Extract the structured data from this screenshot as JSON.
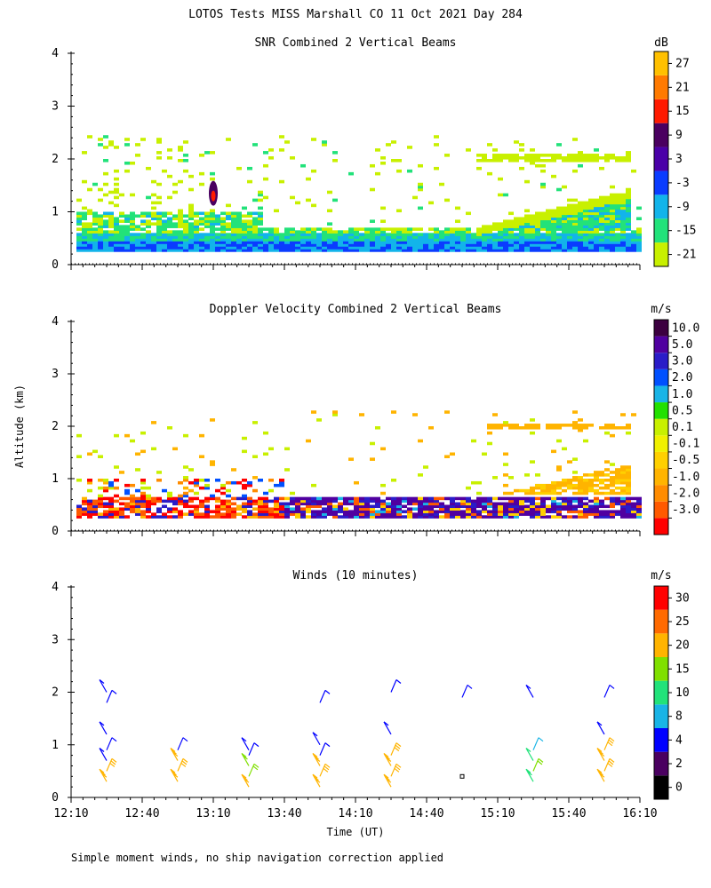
{
  "page": {
    "title": "LOTOS Tests MISS Marshall CO  11 Oct 2021 Day 284",
    "ylabel": "Altitude (km)",
    "xlabel": "Time (UT)",
    "footnote": "Simple moment winds, no ship navigation correction applied"
  },
  "colors": {
    "snr": [
      "#c8f000",
      "#22e27a",
      "#12b4ea",
      "#0a3cff",
      "#4a00a8",
      "#4a0060",
      "#ff1a00",
      "#ff7a00",
      "#ffc000"
    ],
    "velocity": [
      "#ff0000",
      "#ff5a00",
      "#ff8c00",
      "#ffb400",
      "#ffd000",
      "#f0f000",
      "#c8f000",
      "#22e000",
      "#19b4e6",
      "#0050ff",
      "#2a1cc8",
      "#5000a0",
      "#3c0040"
    ],
    "winds": [
      "#000000",
      "#4a0060",
      "#0000ff",
      "#19b4e6",
      "#22e27a",
      "#80e000",
      "#ffb400",
      "#ff6a00",
      "#ff0000"
    ]
  },
  "chart_data": [
    {
      "type": "heatmap",
      "title": "SNR Combined 2 Vertical Beams",
      "units": "dB",
      "xlabel": "",
      "ylabel": "Altitude (km)",
      "x_tick_labels": [
        "12:10",
        "12:40",
        "13:10",
        "13:40",
        "14:10",
        "14:40",
        "15:10",
        "15:40",
        "16:10"
      ],
      "xlim": [
        "12:10",
        "16:10"
      ],
      "ylim": [
        0,
        4
      ],
      "y_ticks": [
        0,
        1,
        2,
        3,
        4
      ],
      "colorbar_labels": [
        "-21",
        "-15",
        "-9",
        "-3",
        "3",
        "9",
        "15",
        "21",
        "27"
      ],
      "features": [
        {
          "layer": "surface echo",
          "altitude_km": [
            0.25,
            0.65
          ],
          "snr_db": "-3 to -9",
          "time": "12:10-16:10"
        },
        {
          "layer": "boundary layer top",
          "altitude_km": [
            0.6,
            1.3
          ],
          "snr_db": "-15 to -9",
          "time": "15:00-16:00"
        },
        {
          "layer": "cloud layer",
          "altitude_km": [
            1.9,
            2.1
          ],
          "snr_db": "-21 to -15",
          "time": "15:00-16:00"
        },
        {
          "layer": "isolated echo",
          "altitude_km": [
            1.1,
            1.5
          ],
          "snr_db": "15",
          "time": "13:10"
        }
      ]
    },
    {
      "type": "heatmap",
      "title": "Doppler Velocity Combined 2 Vertical Beams",
      "units": "m/s",
      "xlabel": "",
      "ylabel": "Altitude (km)",
      "x_tick_labels": [
        "12:10",
        "12:40",
        "13:10",
        "13:40",
        "14:10",
        "14:40",
        "15:10",
        "15:40",
        "16:10"
      ],
      "xlim": [
        "12:10",
        "16:10"
      ],
      "ylim": [
        0,
        4
      ],
      "y_ticks": [
        0,
        1,
        2,
        3,
        4
      ],
      "colorbar_labels": [
        "10.0",
        "5.0",
        "3.0",
        "2.0",
        "1.0",
        "0.5",
        "0.1",
        "-0.1",
        "-0.5",
        "-1.0",
        "-2.0",
        "-3.0"
      ],
      "features": [
        {
          "layer": "low level",
          "altitude_km": [
            0.3,
            0.7
          ],
          "velocity_ms": "-3 to 5",
          "time": "12:10-16:10"
        },
        {
          "layer": "boundary layer top",
          "altitude_km": [
            0.8,
            1.3
          ],
          "velocity_ms": "-0.5 to -1.0",
          "time": "15:00-16:00"
        },
        {
          "layer": "cloud layer",
          "altitude_km": [
            1.9,
            2.1
          ],
          "velocity_ms": "-0.5 to -1.0",
          "time": "15:00-16:00"
        }
      ]
    },
    {
      "type": "scatter",
      "title": "Winds (10 minutes)",
      "units": "m/s",
      "xlabel": "Time (UT)",
      "ylabel": "Altitude (km)",
      "x_tick_labels": [
        "12:10",
        "12:40",
        "13:10",
        "13:40",
        "14:10",
        "14:40",
        "15:10",
        "15:40",
        "16:10"
      ],
      "xlim": [
        "12:10",
        "16:10"
      ],
      "ylim": [
        0,
        4
      ],
      "y_ticks": [
        0,
        1,
        2,
        3,
        4
      ],
      "colorbar_labels": [
        "0",
        "2",
        "4",
        "8",
        "10",
        "15",
        "20",
        "25",
        "30"
      ],
      "profiles": [
        {
          "time": "12:25",
          "altitude_km": [
            0.3,
            0.5,
            0.7,
            0.9,
            1.2,
            1.8,
            2.0
          ],
          "speed_ms": [
            22,
            21,
            4,
            4,
            4,
            4,
            4
          ]
        },
        {
          "time": "12:55",
          "altitude_km": [
            0.3,
            0.5,
            0.7,
            0.9
          ],
          "speed_ms": [
            22,
            22,
            20,
            4
          ]
        },
        {
          "time": "13:25",
          "altitude_km": [
            0.2,
            0.4,
            0.6,
            0.8,
            0.9
          ],
          "speed_ms": [
            21,
            17,
            15,
            4,
            4
          ]
        },
        {
          "time": "13:55",
          "altitude_km": [
            0.2,
            0.4,
            0.6,
            0.8,
            1.0,
            1.8
          ],
          "speed_ms": [
            21,
            21,
            21,
            4,
            4,
            4
          ]
        },
        {
          "time": "14:25",
          "altitude_km": [
            0.2,
            0.4,
            0.6,
            0.8,
            1.2,
            2.0
          ],
          "speed_ms": [
            24,
            24,
            22,
            20,
            4,
            4
          ]
        },
        {
          "time": "14:55",
          "altitude_km": [
            0.4,
            1.9
          ],
          "speed_ms": [
            0,
            4
          ]
        },
        {
          "time": "15:25",
          "altitude_km": [
            0.3,
            0.5,
            0.7,
            0.9,
            1.9
          ],
          "speed_ms": [
            12,
            17,
            10,
            8,
            4
          ]
        },
        {
          "time": "15:55",
          "altitude_km": [
            0.3,
            0.5,
            0.7,
            0.9,
            1.2,
            1.9
          ],
          "speed_ms": [
            22,
            22,
            24,
            24,
            4,
            4
          ]
        }
      ]
    }
  ]
}
